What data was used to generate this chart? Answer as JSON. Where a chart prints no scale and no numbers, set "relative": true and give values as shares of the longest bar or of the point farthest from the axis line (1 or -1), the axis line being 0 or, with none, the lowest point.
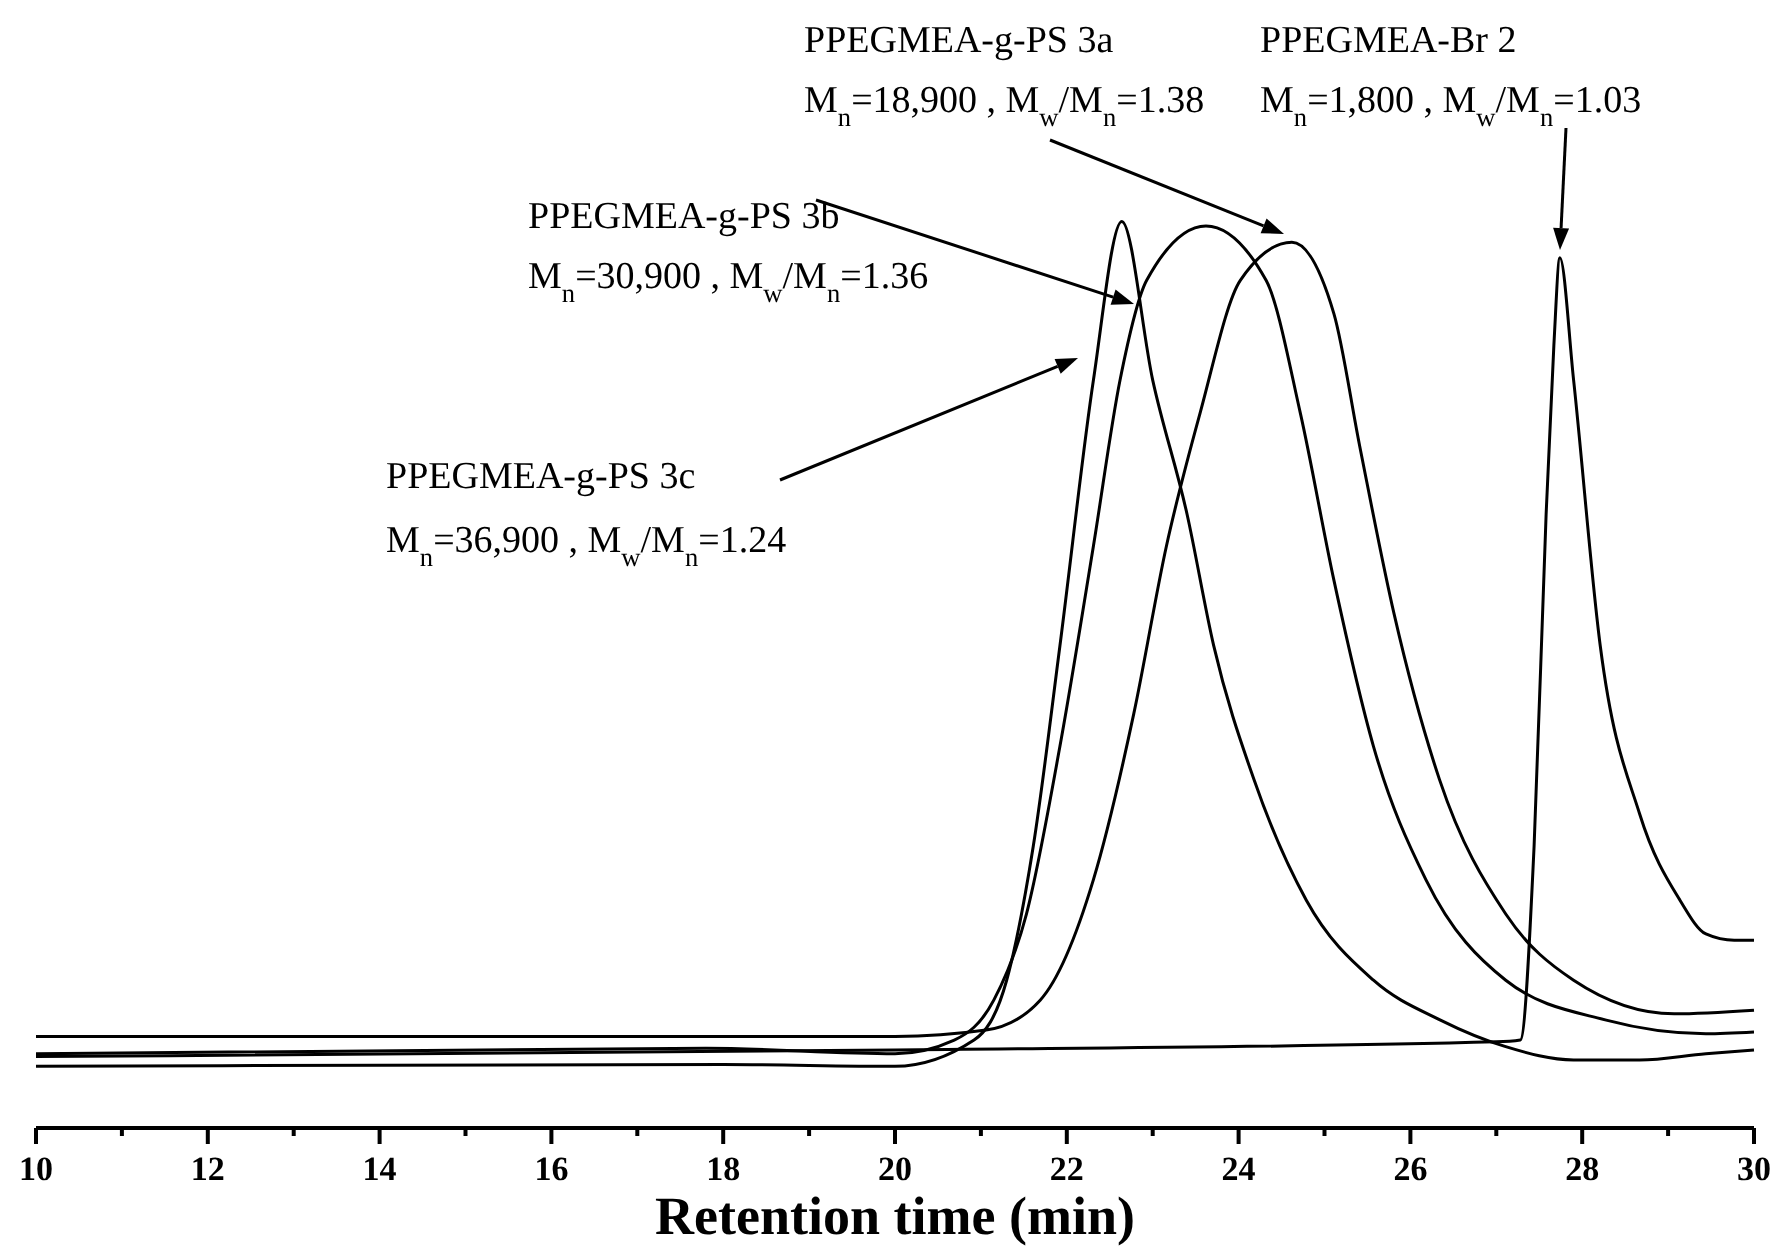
{
  "chart_data": {
    "type": "line",
    "relative": true,
    "xlabel": "Retention time (min)",
    "xlim": [
      10,
      30
    ],
    "xticks": [
      10,
      {
        "value": 11,
        "label": null
      },
      12,
      {
        "value": 13,
        "label": null
      },
      14,
      {
        "value": 15,
        "label": null
      },
      16,
      {
        "value": 17,
        "label": null
      },
      18,
      {
        "value": 19,
        "label": null
      },
      20,
      {
        "value": 21,
        "label": null
      },
      22,
      {
        "value": 23,
        "label": null
      },
      24,
      {
        "value": 25,
        "label": null
      },
      26,
      {
        "value": 27,
        "label": null
      },
      28,
      {
        "value": 29,
        "label": null
      },
      30
    ],
    "grid": false,
    "marker": "none",
    "line_style": "solid",
    "series": [
      {
        "color": "#000000",
        "x": [
          10,
          18,
          20,
          20.92,
          21.3,
          21.61,
          21.92,
          22.31,
          22.64,
          23.0,
          23.4,
          23.71,
          24.18,
          24.79,
          25.57,
          26.35,
          27.1,
          27.9,
          28.67,
          29.44,
          30
        ],
        "values": [
          0.068,
          0.07,
          0.068,
          0.097,
          0.163,
          0.311,
          0.532,
          0.825,
          1.0,
          0.825,
          0.677,
          0.532,
          0.384,
          0.251,
          0.163,
          0.119,
          0.09,
          0.075,
          0.075,
          0.082,
          0.086
        ]
      },
      {
        "color": "#000000",
        "x": [
          10,
          17.8,
          20,
          20.69,
          21.15,
          21.53,
          21.92,
          22.31,
          22.62,
          22.93,
          23.62,
          24.32,
          24.72,
          25.11,
          25.57,
          26.18,
          27.11,
          28.28,
          29.44,
          30
        ],
        "values": [
          0.082,
          0.088,
          0.082,
          0.097,
          0.141,
          0.236,
          0.421,
          0.642,
          0.825,
          0.935,
          0.995,
          0.935,
          0.788,
          0.604,
          0.421,
          0.274,
          0.163,
          0.119,
          0.104,
          0.106
        ]
      },
      {
        "color": "#000000",
        "x": [
          10,
          20,
          21.06,
          21.69,
          22.31,
          22.78,
          23.16,
          23.55,
          24.02,
          24.62,
          25.11,
          25.41,
          25.81,
          26.34,
          27.11,
          27.9,
          29.07,
          30
        ],
        "values": [
          0.101,
          0.101,
          0.108,
          0.141,
          0.274,
          0.457,
          0.642,
          0.788,
          0.935,
          0.977,
          0.898,
          0.752,
          0.567,
          0.384,
          0.236,
          0.163,
          0.126,
          0.13
        ]
      },
      {
        "color": "#000000",
        "x": [
          10,
          20,
          27,
          27.28,
          27.44,
          27.58,
          27.67,
          27.74,
          27.9,
          28.21,
          28.67,
          29.14,
          29.44,
          29.77,
          30
        ],
        "values": [
          0.079,
          0.086,
          0.095,
          0.097,
          0.311,
          0.677,
          0.863,
          0.96,
          0.825,
          0.532,
          0.346,
          0.251,
          0.214,
          0.207,
          0.207
        ]
      }
    ],
    "annotations": [
      "PPEGMEA-g-PS 3a",
      "M$_{n}$=18,900 , M$_{w}$/M$_{n}$=1.38",
      "PPEGMEA-Br 2",
      "M$_{n}$=1,800 , M$_{w}$/M$_{n}$=1.03",
      "PPEGMEA-g-PS 3b",
      "M$_{n}$=30,900 , M$_{w}$/M$_{n}$=1.36",
      "PPEGMEA-g-PS 3c",
      "M$_{n}$=36,900 , M$_{w}$/M$_{n}$=1.24"
    ]
  }
}
